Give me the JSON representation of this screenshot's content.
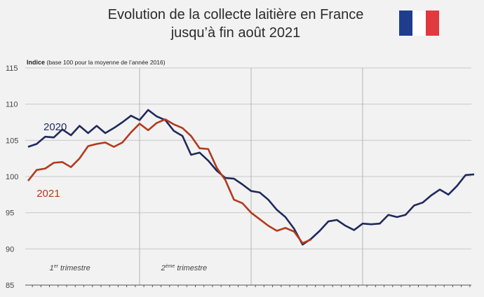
{
  "title_line1": "Evolution de la collecte laitière en France",
  "title_line2": "jusqu’à fin août 2021",
  "flag_icon": "french-flag-icon",
  "colors": {
    "background": "#f2f2f2",
    "series_2020": "#1f2a5c",
    "series_2021": "#b23a1e",
    "grid": "#c8c8c8",
    "flag_blue": "#1f3d8f",
    "flag_white": "#ffffff",
    "flag_red": "#e03a3e"
  },
  "chart_data": {
    "type": "line",
    "ylabel_strong": "Indice",
    "ylabel_rest": " (base 100 pour la moyenne de l’année 2016)",
    "ylim": [
      85,
      115
    ],
    "yticks": [
      85,
      90,
      95,
      100,
      105,
      110,
      115
    ],
    "x_count": 53,
    "x_unit": "week",
    "quarter_boundaries_week": [
      13,
      26,
      39
    ],
    "quarter_labels": [
      {
        "ordinal": "1",
        "sup": "er",
        "text": " trimestre",
        "week": 2.5
      },
      {
        "ordinal": "2",
        "sup": "ème",
        "text": " trimestre",
        "week": 15.5
      }
    ],
    "grid": true,
    "series": [
      {
        "name": "2020",
        "color_key": "series_2020",
        "label_week": 1.8,
        "label_value": 106.4,
        "values": [
          104.1,
          104.5,
          105.5,
          105.4,
          106.5,
          105.7,
          107.0,
          106.0,
          107.0,
          106.0,
          106.7,
          107.5,
          108.4,
          107.8,
          109.2,
          108.3,
          107.8,
          106.3,
          105.6,
          103.0,
          103.3,
          102.2,
          100.8,
          99.8,
          99.7,
          98.9,
          98.0,
          97.8,
          96.8,
          95.4,
          94.4,
          92.8,
          90.6,
          91.4,
          92.5,
          93.8,
          94.0,
          93.2,
          92.6,
          93.5,
          93.4,
          93.5,
          94.7,
          94.4,
          94.7,
          96.0,
          96.4,
          97.4,
          98.2,
          97.5,
          98.7,
          100.2,
          100.3
        ]
      },
      {
        "name": "2021",
        "color_key": "series_2021",
        "label_week": 1.0,
        "label_value": 97.2,
        "values": [
          99.4,
          100.9,
          101.1,
          101.9,
          102.0,
          101.3,
          102.5,
          104.2,
          104.5,
          104.7,
          104.1,
          104.7,
          106.1,
          107.3,
          106.4,
          107.4,
          107.9,
          107.2,
          106.7,
          105.6,
          103.9,
          103.8,
          101.2,
          99.5,
          96.8,
          96.3,
          95.0,
          94.1,
          93.2,
          92.5,
          92.9,
          92.4,
          90.8,
          91.3
        ]
      }
    ]
  }
}
